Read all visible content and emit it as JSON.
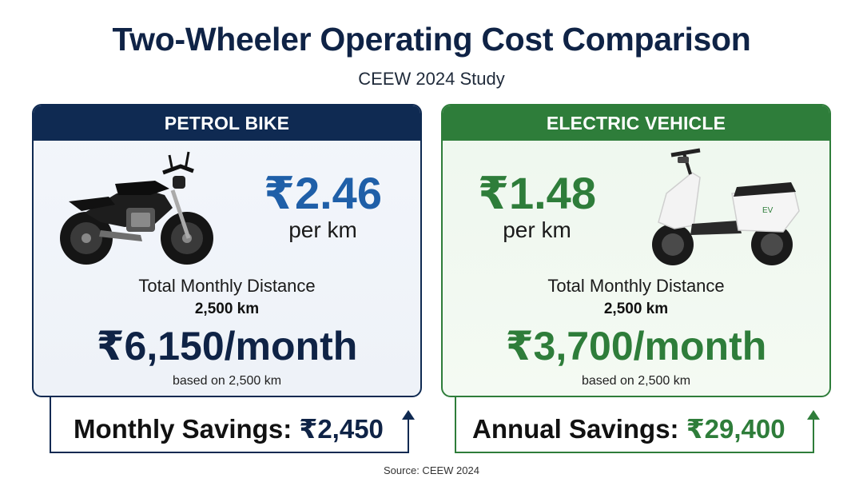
{
  "header": {
    "title": "Two-Wheeler Operating Cost Comparison",
    "subtitle": "CEEW 2024 Study"
  },
  "petrol": {
    "heading": "PETROL BIKE",
    "rate": "₹2.46",
    "rate_unit": "per km",
    "distance_label": "Total Monthly Distance",
    "distance_value": "2,500 km",
    "monthly_cost": "₹6,150/month",
    "basis": "based on 2,500 km",
    "savings_label": "Monthly Savings:",
    "savings_value": "₹2,450",
    "image_icon": "motorcycle-icon"
  },
  "ev": {
    "heading": "ELECTRIC VEHICLE",
    "rate": "₹1.48",
    "rate_unit": "per km",
    "distance_label": "Total Monthly Distance",
    "distance_value": "2,500 km",
    "monthly_cost": "₹3,700/month",
    "basis": "based on 2,500 km",
    "savings_label": "Annual Savings:",
    "savings_value": "₹29,400",
    "scooter_badge": "EV",
    "image_icon": "electric-scooter-icon"
  },
  "footer": {
    "source": "Source: CEEW 2024"
  },
  "colors": {
    "navy": "#0f2a52",
    "petrol_blue": "#1f5fa8",
    "ev_green": "#2e7d3a"
  }
}
